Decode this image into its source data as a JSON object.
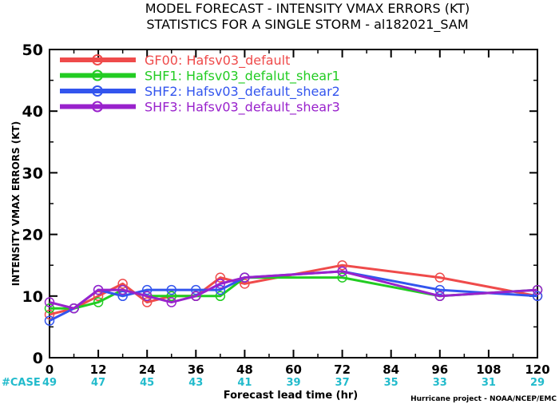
{
  "chart_data": {
    "type": "line",
    "title": "MODEL FORECAST - INTENSITY VMAX ERRORS (KT)",
    "subtitle": "STATISTICS FOR A SINGLE STORM - al182021_SAM",
    "xlabel": "Forecast lead time (hr)",
    "ylabel": "INTENSITY VMAX ERRORS (KT)",
    "xlim": [
      0,
      120
    ],
    "ylim": [
      0,
      50
    ],
    "x_ticks": [
      "0",
      "12",
      "24",
      "36",
      "48",
      "60",
      "72",
      "84",
      "96",
      "108",
      "120"
    ],
    "y_ticks": [
      "0",
      "10",
      "20",
      "30",
      "40",
      "50"
    ],
    "case_label": "#CASE",
    "case_counts": [
      "49",
      "47",
      "45",
      "43",
      "41",
      "39",
      "37",
      "35",
      "33",
      "31",
      "29"
    ],
    "credit": "Hurricane project - NOAA/NCEP/EMC",
    "legend_position": "top-left",
    "grid": false,
    "series": [
      {
        "name": "GF00: Hafsv03_default",
        "color": "#ef4b4b",
        "points": [
          [
            0,
            7
          ],
          [
            6,
            8
          ],
          [
            12,
            10
          ],
          [
            18,
            12
          ],
          [
            24,
            9
          ],
          [
            30,
            10
          ],
          [
            36,
            10
          ],
          [
            42,
            13
          ],
          [
            48,
            12
          ],
          [
            72,
            15
          ],
          [
            96,
            13
          ],
          [
            120,
            10
          ]
        ]
      },
      {
        "name": "SHF1: Hafsv03_defalut_shear1",
        "color": "#22cc22",
        "points": [
          [
            0,
            8
          ],
          [
            6,
            8
          ],
          [
            12,
            9
          ],
          [
            18,
            11
          ],
          [
            24,
            10
          ],
          [
            30,
            10
          ],
          [
            36,
            10
          ],
          [
            42,
            10
          ],
          [
            48,
            13
          ],
          [
            72,
            13
          ],
          [
            96,
            10
          ],
          [
            120,
            11
          ]
        ]
      },
      {
        "name": "SHF2: Hafsv03_default_shear2",
        "color": "#3355ee",
        "points": [
          [
            0,
            6
          ],
          [
            6,
            8
          ],
          [
            12,
            11
          ],
          [
            18,
            10
          ],
          [
            24,
            11
          ],
          [
            30,
            11
          ],
          [
            36,
            11
          ],
          [
            42,
            11
          ],
          [
            48,
            13
          ],
          [
            72,
            14
          ],
          [
            96,
            11
          ],
          [
            120,
            10
          ]
        ]
      },
      {
        "name": "SHF3: Hafsv03_default_shear3",
        "color": "#9922cc",
        "points": [
          [
            0,
            9
          ],
          [
            6,
            8
          ],
          [
            12,
            11
          ],
          [
            18,
            11
          ],
          [
            24,
            10
          ],
          [
            30,
            9
          ],
          [
            36,
            10
          ],
          [
            42,
            12
          ],
          [
            48,
            13
          ],
          [
            72,
            14
          ],
          [
            96,
            10
          ],
          [
            120,
            11
          ]
        ]
      }
    ],
    "colors": {
      "axis": "#000000",
      "case_text": "#22bbcc"
    }
  }
}
